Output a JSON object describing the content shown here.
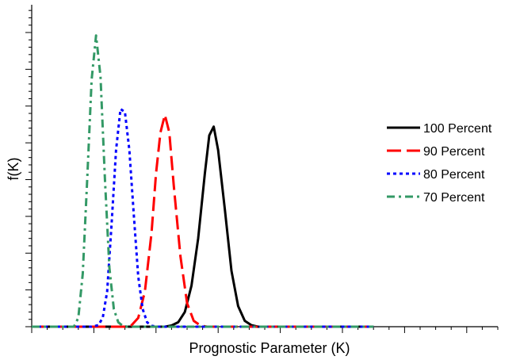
{
  "chart_data": {
    "type": "line",
    "title": "",
    "xlabel": "Prognostic Parameter (K)",
    "ylabel": "f(K)",
    "grid": false,
    "legend_position": "right",
    "x_range": [
      0,
      10.5
    ],
    "y_range": [
      0,
      1.0
    ],
    "series": [
      {
        "name": "100 Percent",
        "color": "#000000",
        "dash": "solid",
        "points": [
          [
            0,
            0
          ],
          [
            3.0,
            0
          ],
          [
            3.15,
            0.004
          ],
          [
            3.3,
            0.015
          ],
          [
            3.45,
            0.05
          ],
          [
            3.6,
            0.14
          ],
          [
            3.75,
            0.3
          ],
          [
            3.9,
            0.52
          ],
          [
            4.0,
            0.65
          ],
          [
            4.1,
            0.68
          ],
          [
            4.2,
            0.6
          ],
          [
            4.35,
            0.4
          ],
          [
            4.5,
            0.19
          ],
          [
            4.65,
            0.07
          ],
          [
            4.8,
            0.02
          ],
          [
            4.95,
            0.005
          ],
          [
            5.1,
            0
          ],
          [
            7.7,
            0
          ]
        ]
      },
      {
        "name": "90 Percent",
        "color": "#ff0000",
        "dash": "dashed",
        "points": [
          [
            0,
            0
          ],
          [
            2.1,
            0
          ],
          [
            2.25,
            0.005
          ],
          [
            2.4,
            0.03
          ],
          [
            2.55,
            0.12
          ],
          [
            2.7,
            0.32
          ],
          [
            2.8,
            0.52
          ],
          [
            2.9,
            0.66
          ],
          [
            3.0,
            0.72
          ],
          [
            3.1,
            0.66
          ],
          [
            3.2,
            0.48
          ],
          [
            3.35,
            0.24
          ],
          [
            3.5,
            0.08
          ],
          [
            3.65,
            0.02
          ],
          [
            3.8,
            0.004
          ],
          [
            3.95,
            0
          ],
          [
            7.7,
            0
          ]
        ]
      },
      {
        "name": "80 Percent",
        "color": "#0000ff",
        "dash": "dotted",
        "points": [
          [
            0,
            0
          ],
          [
            1.35,
            0
          ],
          [
            1.5,
            0.005
          ],
          [
            1.6,
            0.03
          ],
          [
            1.7,
            0.12
          ],
          [
            1.8,
            0.35
          ],
          [
            1.9,
            0.6
          ],
          [
            2.0,
            0.74
          ],
          [
            2.1,
            0.73
          ],
          [
            2.2,
            0.6
          ],
          [
            2.3,
            0.38
          ],
          [
            2.4,
            0.17
          ],
          [
            2.5,
            0.06
          ],
          [
            2.6,
            0.015
          ],
          [
            2.7,
            0.003
          ],
          [
            2.85,
            0
          ],
          [
            7.7,
            0
          ]
        ]
      },
      {
        "name": "70 Percent",
        "color": "#339966",
        "dash": "dashdot",
        "points": [
          [
            0,
            0
          ],
          [
            0.95,
            0
          ],
          [
            1.05,
            0.03
          ],
          [
            1.15,
            0.18
          ],
          [
            1.25,
            0.5
          ],
          [
            1.35,
            0.84
          ],
          [
            1.45,
            0.99
          ],
          [
            1.55,
            0.85
          ],
          [
            1.65,
            0.5
          ],
          [
            1.75,
            0.2
          ],
          [
            1.85,
            0.06
          ],
          [
            1.95,
            0.015
          ],
          [
            2.05,
            0.003
          ],
          [
            2.15,
            0
          ],
          [
            7.7,
            0
          ]
        ]
      }
    ]
  }
}
